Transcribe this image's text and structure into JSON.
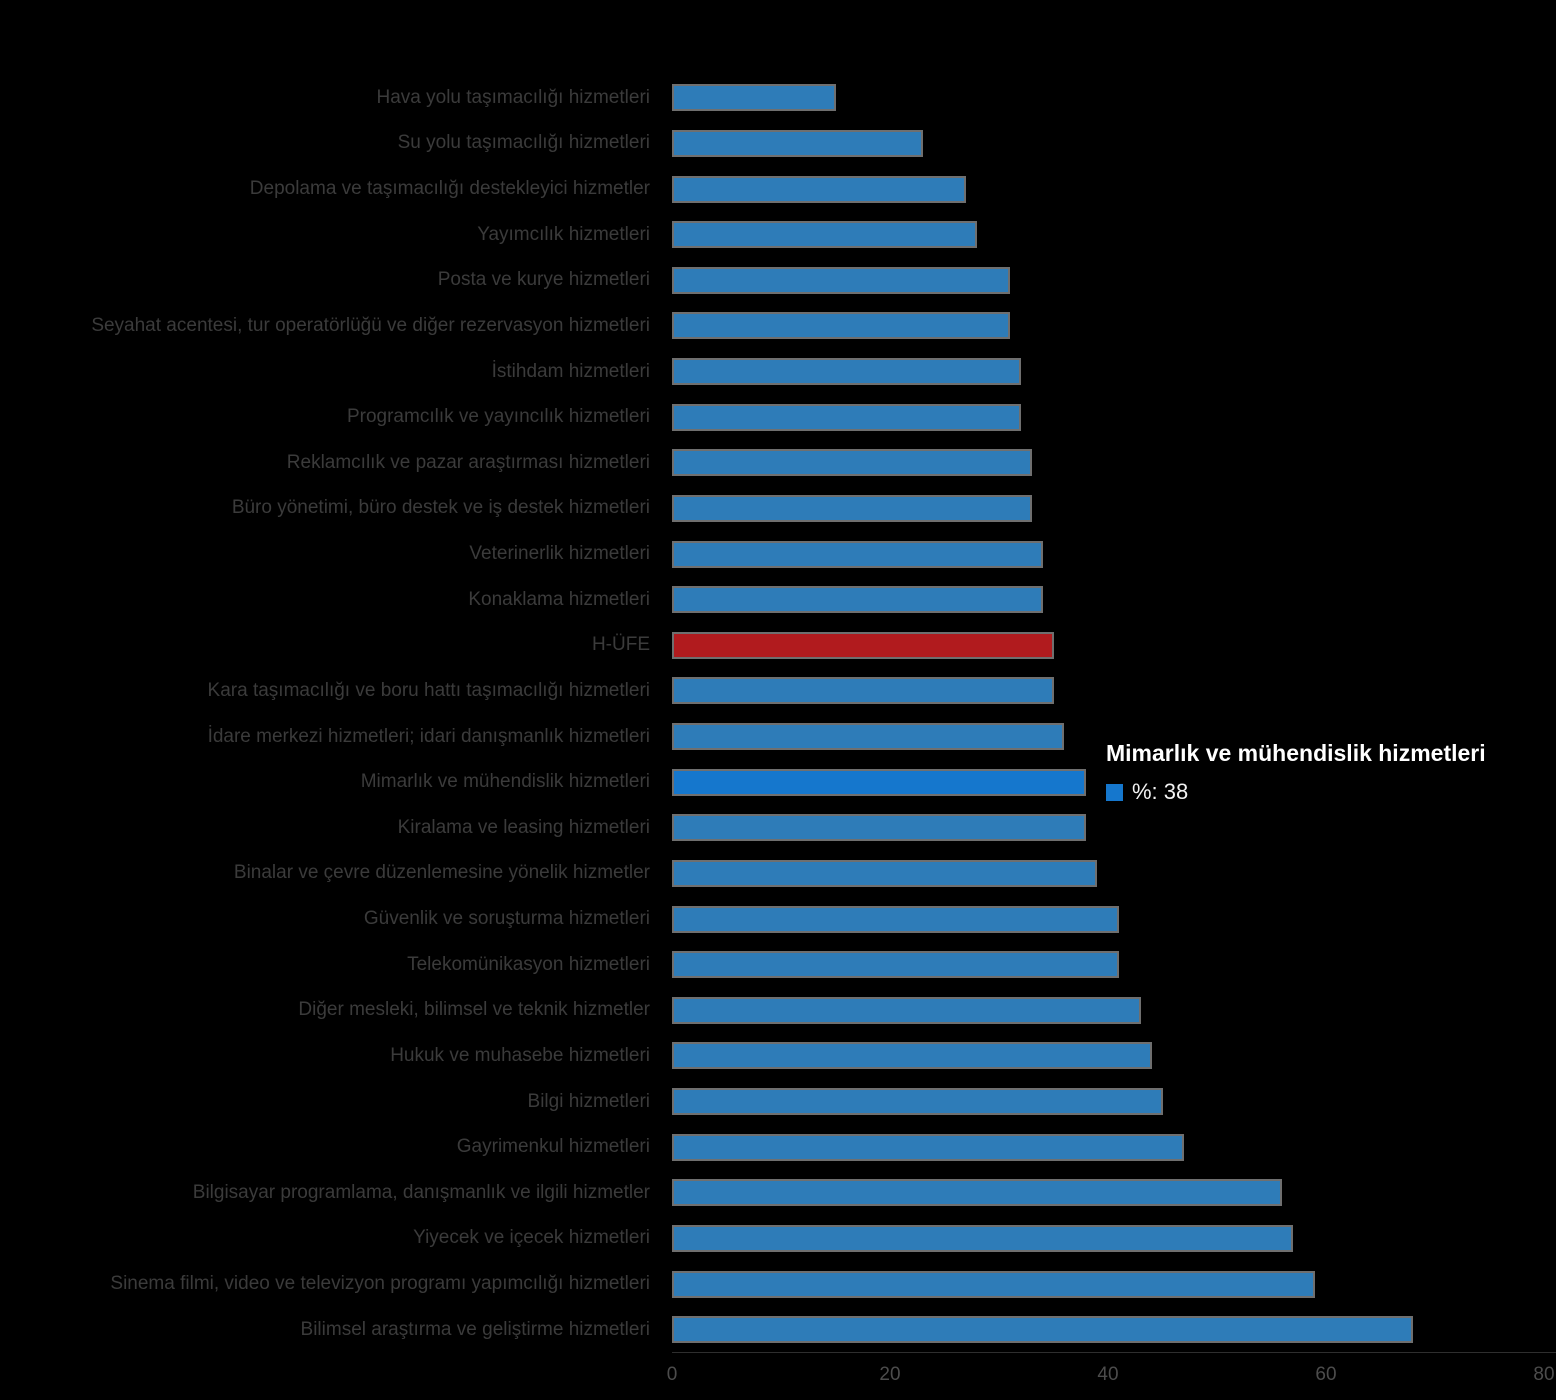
{
  "chart_data": {
    "type": "bar",
    "orientation": "horizontal",
    "title": "",
    "xlabel": "",
    "ylabel": "",
    "xlim": [
      0,
      80
    ],
    "x_ticks": [
      0,
      20,
      40,
      60,
      80
    ],
    "grid": false,
    "legend_position": "none",
    "categories": [
      "Hava yolu taşımacılığı hizmetleri",
      "Su yolu taşımacılığı hizmetleri",
      "Depolama ve taşımacılığı destekleyici hizmetler",
      "Yayımcılık hizmetleri",
      "Posta ve kurye hizmetleri",
      "Seyahat acentesi, tur operatörlüğü ve diğer rezervasyon hizmetleri",
      "İstihdam hizmetleri",
      "Programcılık ve yayıncılık hizmetleri",
      "Reklamcılık ve pazar araştırması hizmetleri",
      "Büro yönetimi, büro destek ve iş destek hizmetleri",
      "Veterinerlik hizmetleri",
      "Konaklama hizmetleri",
      "H-ÜFE",
      "Kara taşımacılığı ve boru hattı taşımacılığı hizmetleri",
      "İdare merkezi hizmetleri; idari danışmanlık hizmetleri",
      "Mimarlık ve mühendislik hizmetleri",
      "Kiralama ve leasing hizmetleri",
      "Binalar ve çevre düzenlemesine yönelik hizmetler",
      "Güvenlik ve soruşturma hizmetleri",
      "Telekomünikasyon hizmetleri",
      "Diğer mesleki, bilimsel ve teknik hizmetler",
      "Hukuk ve muhasebe hizmetleri",
      "Bilgi hizmetleri",
      "Gayrimenkul hizmetleri",
      "Bilgisayar programlama, danışmanlık ve ilgili hizmetler",
      "Yiyecek ve içecek hizmetleri",
      "Sinema filmi, video ve televizyon programı yapımcılığı hizmetleri",
      "Bilimsel araştırma ve geliştirme hizmetleri"
    ],
    "values": [
      15,
      23,
      27,
      28,
      31,
      31,
      32,
      32,
      33,
      33,
      34,
      34,
      35,
      35,
      36,
      38,
      38,
      39,
      41,
      41,
      43,
      44,
      45,
      47,
      56,
      57,
      59,
      68
    ],
    "highlight_index": 15,
    "reference_index": 12,
    "colors": {
      "bar_default": "#2e7cb8",
      "bar_highlight": "#1577cd",
      "bar_reference": "#b11b1e",
      "bar_border": "#6f6f6f",
      "label_text": "#3b3b3b",
      "tick_text": "#4c4c4c"
    }
  },
  "tooltip": {
    "title": "Mimarlık ve mühendislik hizmetleri",
    "value_label": "%: 38",
    "swatch_color": "#1577cd"
  }
}
